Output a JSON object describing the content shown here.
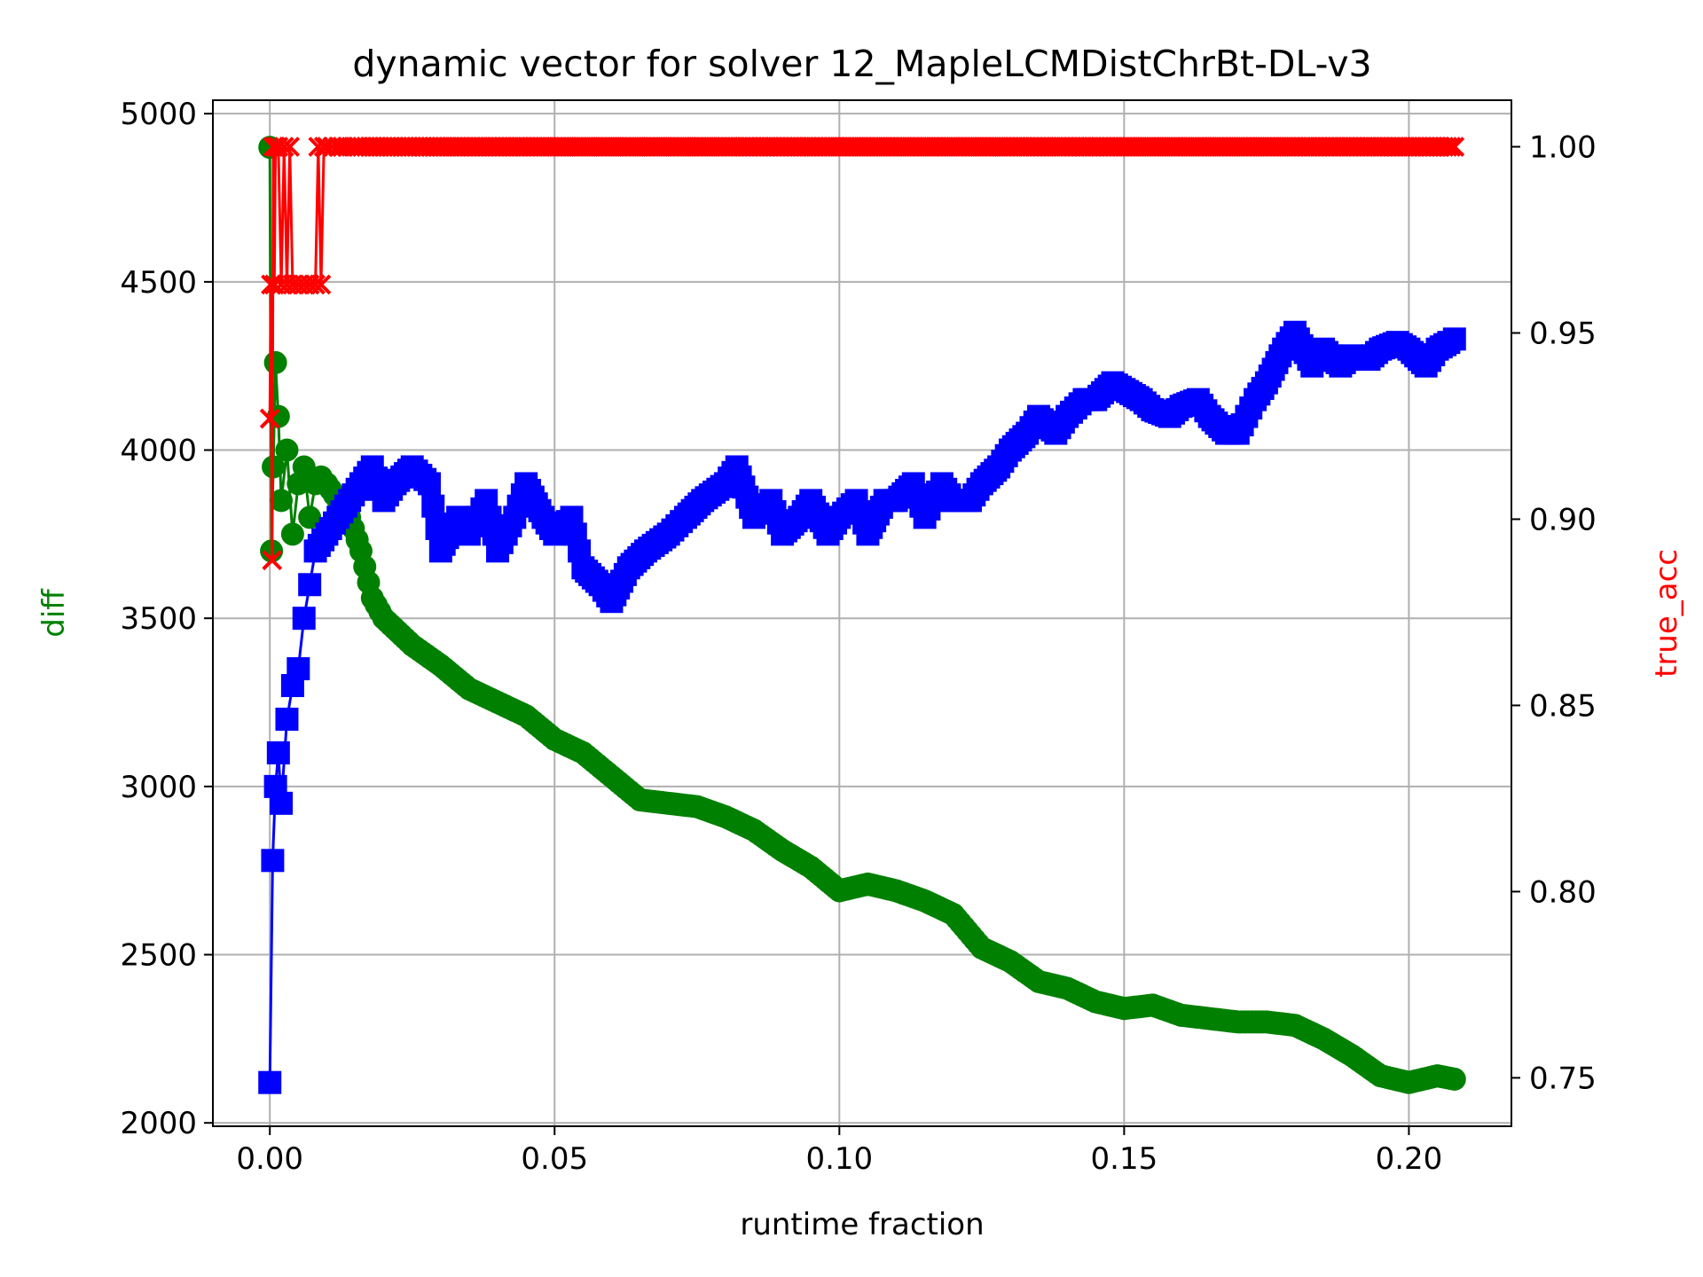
{
  "chart_data": {
    "type": "line",
    "title": "dynamic vector for solver 12_MapleLCMDistChrBt-DL-v3",
    "xlabel": "runtime fraction",
    "ylabel_left": "diff",
    "ylabel_right": "true_acc",
    "xlim": [
      -0.01,
      0.218
    ],
    "ylim_left": [
      1990,
      5040
    ],
    "ylim_right": [
      0.737,
      1.0125
    ],
    "x_ticks": [
      0.0,
      0.05,
      0.1,
      0.15,
      0.2
    ],
    "x_tick_labels": [
      "0.00",
      "0.05",
      "0.10",
      "0.15",
      "0.20"
    ],
    "y_left_ticks": [
      2000,
      2500,
      3000,
      3500,
      4000,
      4500,
      5000
    ],
    "y_left_tick_labels": [
      "2000",
      "2500",
      "3000",
      "3500",
      "4000",
      "4500",
      "5000"
    ],
    "y_right_ticks": [
      0.75,
      0.8,
      0.85,
      0.9,
      0.95,
      1.0
    ],
    "y_right_tick_labels": [
      "0.75",
      "0.80",
      "0.85",
      "0.90",
      "0.95",
      "1.00"
    ],
    "grid": true,
    "colors": {
      "diff_green": "#008000",
      "diff_blue": "#0000ff",
      "acc_red": "#ff0000",
      "left_label": "#008000",
      "right_label": "#ff0000"
    },
    "series": [
      {
        "name": "diff (green)",
        "axis": "left",
        "marker": "circle",
        "color": "#008000",
        "x": [
          0.0,
          0.0003,
          0.0006,
          0.001,
          0.0015,
          0.002,
          0.003,
          0.004,
          0.005,
          0.006,
          0.007,
          0.008,
          0.009,
          0.01,
          0.012,
          0.014,
          0.016,
          0.018,
          0.02,
          0.025,
          0.03,
          0.035,
          0.04,
          0.045,
          0.05,
          0.055,
          0.06,
          0.065,
          0.07,
          0.075,
          0.08,
          0.085,
          0.09,
          0.095,
          0.1,
          0.105,
          0.11,
          0.115,
          0.12,
          0.125,
          0.13,
          0.135,
          0.14,
          0.145,
          0.15,
          0.155,
          0.16,
          0.165,
          0.17,
          0.175,
          0.18,
          0.185,
          0.19,
          0.195,
          0.2,
          0.205,
          0.208
        ],
        "y": [
          4900,
          3700,
          3950,
          4260,
          4100,
          3850,
          4000,
          3750,
          3900,
          3950,
          3800,
          3900,
          3920,
          3900,
          3850,
          3800,
          3700,
          3560,
          3500,
          3420,
          3360,
          3290,
          3250,
          3210,
          3140,
          3100,
          3030,
          2960,
          2950,
          2940,
          2910,
          2870,
          2810,
          2760,
          2690,
          2710,
          2690,
          2660,
          2620,
          2520,
          2480,
          2420,
          2400,
          2360,
          2340,
          2350,
          2320,
          2310,
          2300,
          2300,
          2290,
          2250,
          2200,
          2140,
          2120,
          2140,
          2130
        ]
      },
      {
        "name": "diff (blue)",
        "axis": "left",
        "marker": "square",
        "color": "#0000ff",
        "x": [
          0.0,
          0.0005,
          0.001,
          0.0015,
          0.002,
          0.003,
          0.004,
          0.005,
          0.006,
          0.007,
          0.008,
          0.01,
          0.012,
          0.014,
          0.016,
          0.018,
          0.02,
          0.022,
          0.025,
          0.028,
          0.03,
          0.033,
          0.035,
          0.038,
          0.04,
          0.043,
          0.045,
          0.048,
          0.05,
          0.053,
          0.055,
          0.058,
          0.06,
          0.063,
          0.066,
          0.07,
          0.073,
          0.076,
          0.08,
          0.082,
          0.085,
          0.088,
          0.09,
          0.093,
          0.095,
          0.098,
          0.1,
          0.103,
          0.105,
          0.108,
          0.11,
          0.113,
          0.115,
          0.118,
          0.12,
          0.123,
          0.125,
          0.128,
          0.13,
          0.133,
          0.135,
          0.138,
          0.14,
          0.143,
          0.145,
          0.148,
          0.15,
          0.153,
          0.155,
          0.158,
          0.16,
          0.163,
          0.165,
          0.168,
          0.17,
          0.173,
          0.175,
          0.178,
          0.18,
          0.183,
          0.185,
          0.188,
          0.19,
          0.193,
          0.195,
          0.198,
          0.2,
          0.203,
          0.205,
          0.207,
          0.208
        ],
        "y": [
          2120,
          2780,
          3000,
          3100,
          2950,
          3200,
          3300,
          3350,
          3500,
          3600,
          3700,
          3750,
          3800,
          3850,
          3900,
          3950,
          3850,
          3900,
          3950,
          3900,
          3700,
          3800,
          3750,
          3850,
          3700,
          3800,
          3900,
          3800,
          3750,
          3800,
          3650,
          3600,
          3550,
          3650,
          3700,
          3750,
          3800,
          3850,
          3900,
          3950,
          3800,
          3850,
          3750,
          3800,
          3850,
          3750,
          3800,
          3850,
          3750,
          3850,
          3850,
          3900,
          3800,
          3900,
          3850,
          3850,
          3900,
          3950,
          4000,
          4050,
          4100,
          4050,
          4100,
          4150,
          4150,
          4200,
          4180,
          4150,
          4120,
          4100,
          4130,
          4150,
          4100,
          4050,
          4050,
          4150,
          4200,
          4300,
          4350,
          4250,
          4300,
          4250,
          4280,
          4270,
          4300,
          4320,
          4300,
          4250,
          4300,
          4320,
          4330
        ]
      },
      {
        "name": "true_acc",
        "axis": "right",
        "marker": "x",
        "color": "#ff0000",
        "x": [
          0.0,
          0.0002,
          0.0004,
          0.0006,
          0.0008,
          0.001,
          0.0015,
          0.002,
          0.0025,
          0.003,
          0.0035,
          0.004,
          0.005,
          0.006,
          0.007,
          0.008,
          0.0085,
          0.009,
          0.0095,
          0.01,
          0.011,
          0.012,
          0.015,
          0.02,
          0.03,
          0.05,
          0.08,
          0.1,
          0.13,
          0.15,
          0.18,
          0.2,
          0.208
        ],
        "y": [
          0.927,
          0.963,
          0.889,
          1.0,
          0.963,
          1.0,
          1.0,
          0.963,
          1.0,
          0.963,
          1.0,
          0.963,
          0.963,
          0.963,
          0.963,
          0.963,
          1.0,
          0.963,
          1.0,
          1.0,
          1.0,
          1.0,
          1.0,
          1.0,
          1.0,
          1.0,
          1.0,
          1.0,
          1.0,
          1.0,
          1.0,
          1.0,
          1.0
        ]
      }
    ]
  }
}
